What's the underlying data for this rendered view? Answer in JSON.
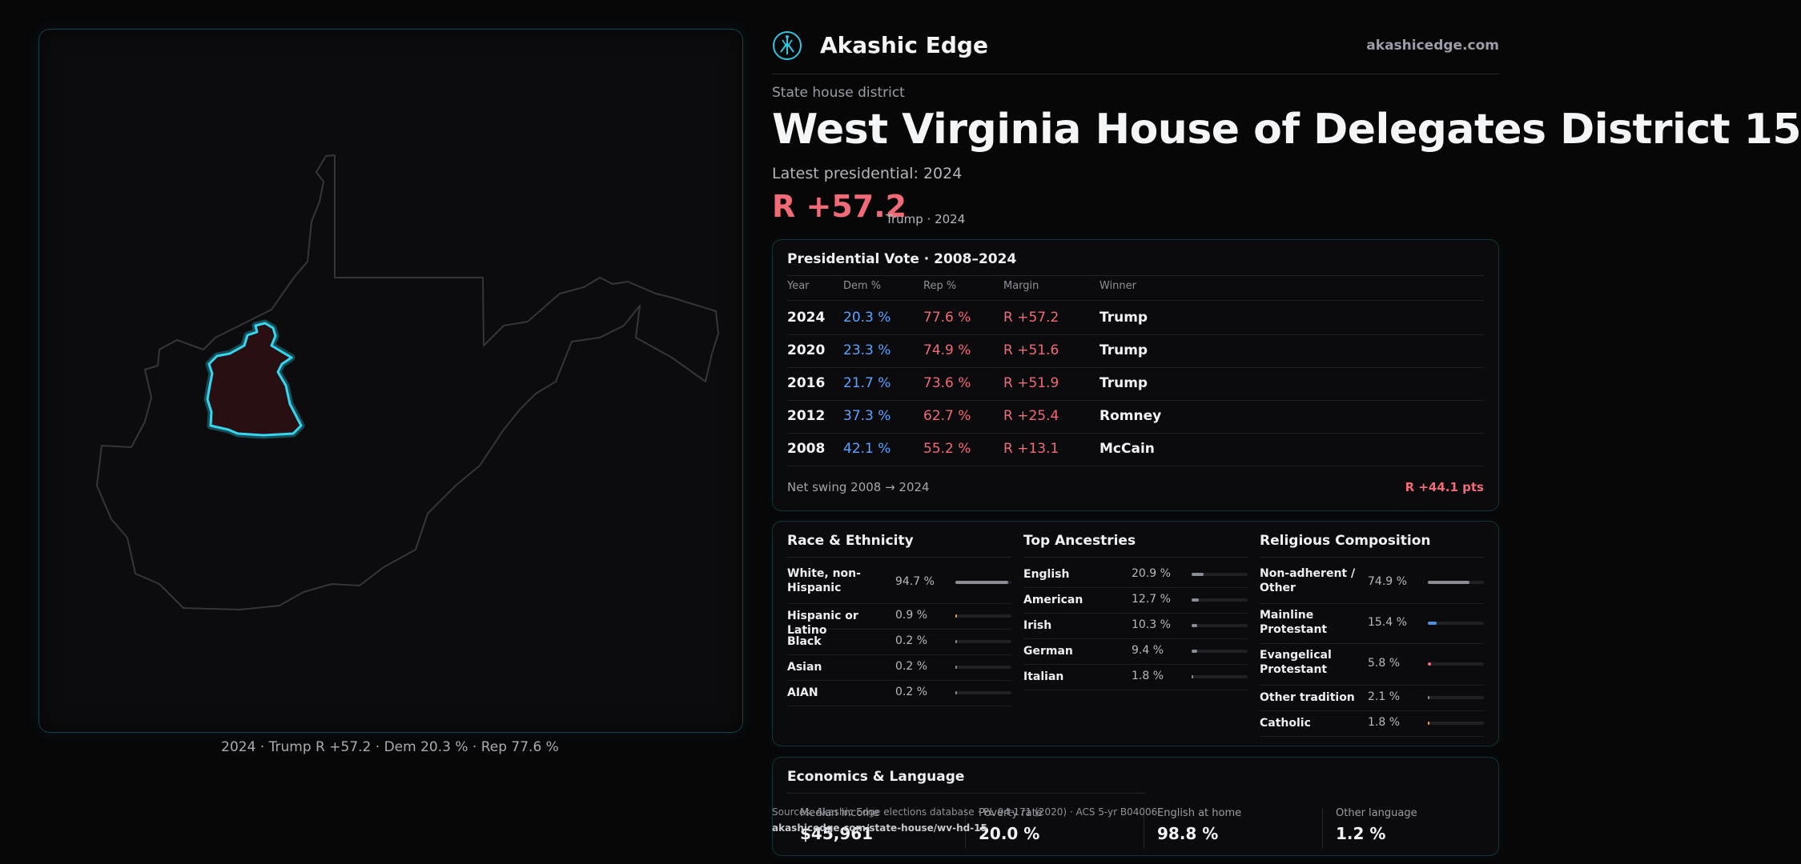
{
  "brand": {
    "name": "Akashic Edge",
    "url": "akashicedge.com",
    "logo_icon": "akashic-tree-logo-icon",
    "accent": "#2ec6df"
  },
  "district": {
    "kicker": "State house district",
    "title": "West Virginia House of Delegates District 15",
    "latest_label": "Latest presidential: 2024",
    "margin": "R +57.2",
    "margin_note": "Trump · 2024"
  },
  "map": {
    "caption": "2024 · Trump R +57.2 · Dem 20.3 % · Rep 77.6 %"
  },
  "presidential": {
    "title": "Presidential Vote · 2008–2024",
    "headers": {
      "year": "Year",
      "dem": "Dem %",
      "rep": "Rep %",
      "margin": "Margin",
      "winner": "Winner"
    },
    "rows": [
      {
        "year": "2024",
        "dem": "20.3 %",
        "rep": "77.6 %",
        "margin": "R +57.2",
        "winner": "Trump"
      },
      {
        "year": "2020",
        "dem": "23.3 %",
        "rep": "74.9 %",
        "margin": "R +51.6",
        "winner": "Trump"
      },
      {
        "year": "2016",
        "dem": "21.7 %",
        "rep": "73.6 %",
        "margin": "R +51.9",
        "winner": "Trump"
      },
      {
        "year": "2012",
        "dem": "37.3 %",
        "rep": "62.7 %",
        "margin": "R +25.4",
        "winner": "Romney"
      },
      {
        "year": "2008",
        "dem": "42.1 %",
        "rep": "55.2 %",
        "margin": "R +13.1",
        "winner": "McCain"
      }
    ],
    "swing_label": "Net swing 2008 → 2024",
    "swing_value": "R +44.1 pts"
  },
  "race": {
    "title": "Race & Ethnicity",
    "items": [
      {
        "label": "White, non-Hispanic",
        "value": "94.7 %",
        "fraction": 0.947,
        "color": "#8a8d95"
      },
      {
        "label": "Hispanic or Latino",
        "value": "0.9 %",
        "fraction": 0.009,
        "color": "#e0a24a"
      },
      {
        "label": "Black",
        "value": "0.2 %",
        "fraction": 0.002,
        "color": "#8a8d95"
      },
      {
        "label": "Asian",
        "value": "0.2 %",
        "fraction": 0.002,
        "color": "#8a8d95"
      },
      {
        "label": "AIAN",
        "value": "0.2 %",
        "fraction": 0.002,
        "color": "#8a8d95"
      }
    ]
  },
  "ancestry": {
    "title": "Top Ancestries",
    "items": [
      {
        "label": "English",
        "value": "20.9 %",
        "fraction": 0.209,
        "color": "#8a8d95"
      },
      {
        "label": "American",
        "value": "12.7 %",
        "fraction": 0.127,
        "color": "#8a8d95"
      },
      {
        "label": "Irish",
        "value": "10.3 %",
        "fraction": 0.103,
        "color": "#8a8d95"
      },
      {
        "label": "German",
        "value": "9.4 %",
        "fraction": 0.094,
        "color": "#8a8d95"
      },
      {
        "label": "Italian",
        "value": "1.8 %",
        "fraction": 0.018,
        "color": "#8a8d95"
      }
    ]
  },
  "religion": {
    "title": "Religious Composition",
    "items": [
      {
        "label": "Non-adherent / Other",
        "value": "74.9 %",
        "fraction": 0.749,
        "color": "#8a8d95"
      },
      {
        "label": "Mainline Protestant",
        "value": "15.4 %",
        "fraction": 0.154,
        "color": "#4f8fe8"
      },
      {
        "label": "Evangelical Protestant",
        "value": "5.8 %",
        "fraction": 0.058,
        "color": "#f06a78"
      },
      {
        "label": "Other tradition",
        "value": "2.1 %",
        "fraction": 0.021,
        "color": "#8a8d95"
      },
      {
        "label": "Catholic",
        "value": "1.8 %",
        "fraction": 0.018,
        "color": "#d9b04a"
      }
    ]
  },
  "economics": {
    "title": "Economics & Language",
    "items": [
      {
        "label": "Median income",
        "value": "$45,961"
      },
      {
        "label": "Poverty rate",
        "value": "20.0 %"
      },
      {
        "label": "English at home",
        "value": "98.8 %"
      },
      {
        "label": "Other language",
        "value": "1.2 %"
      }
    ]
  },
  "sources": {
    "text": "Sources: Akashic Edge elections database · PL 94-171 (2020) · ACS 5-yr B04006",
    "url": "akashicedge.com/state-house/wv-hd-15"
  }
}
